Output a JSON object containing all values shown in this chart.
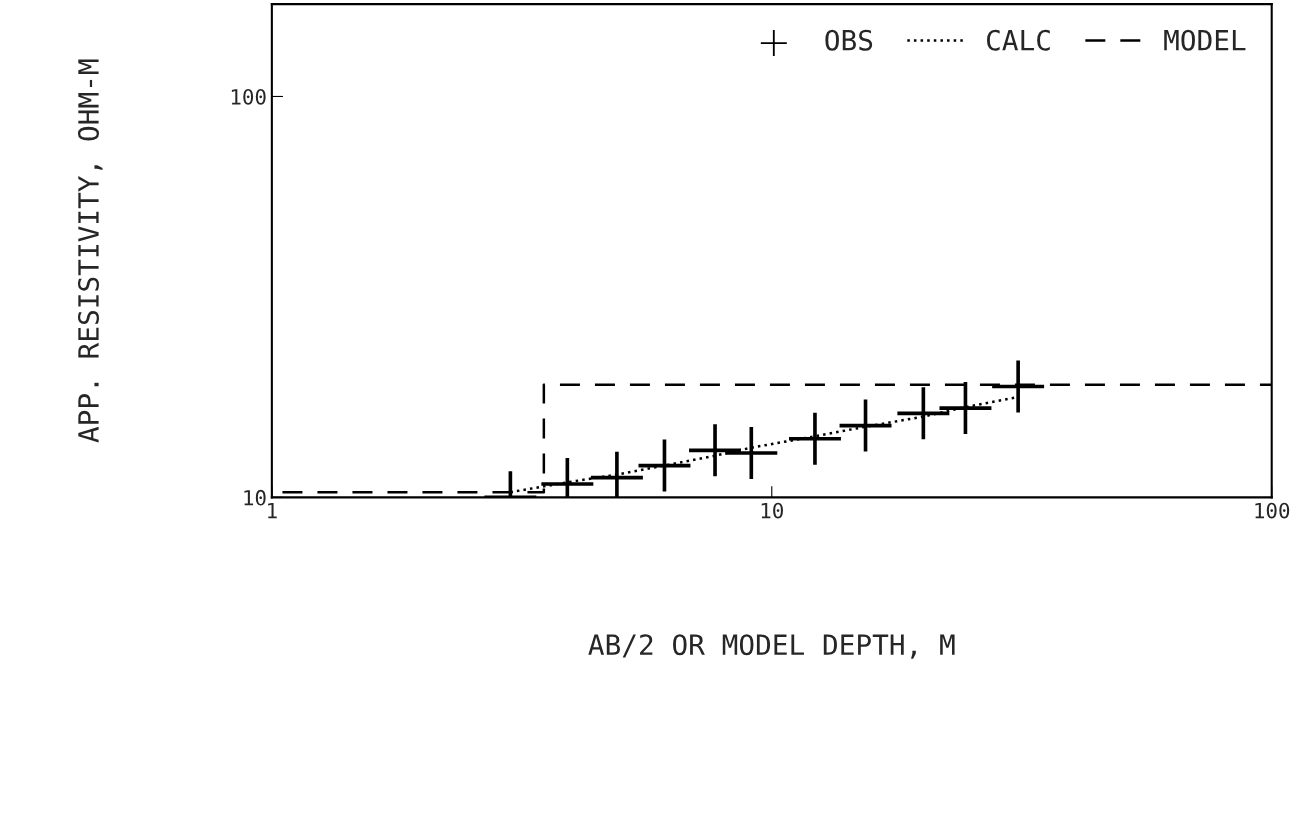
{
  "chart_data": {
    "type": "scatter",
    "xlabel": "AB/2 OR MODEL DEPTH, M",
    "ylabel": "APP. RESISTIVITY, OHM-M",
    "log": "xy",
    "xlim": [
      1,
      100
    ],
    "ylim": [
      10,
      170
    ],
    "xticks": [
      1,
      10,
      100
    ],
    "yticks": [
      10,
      100
    ],
    "grid": false,
    "legend": "top right",
    "series": [
      {
        "name": "OBS",
        "marker": "cross",
        "color": "#000000",
        "x": [
          3.0,
          3.9,
          4.9,
          6.1,
          7.7,
          9.1,
          12.2,
          15.4,
          20.1,
          24.4,
          31.1
        ],
        "values": [
          10.0,
          10.8,
          11.2,
          12.0,
          13.1,
          12.9,
          14.0,
          15.1,
          16.2,
          16.7,
          18.9
        ]
      },
      {
        "name": "CALC",
        "type": "line",
        "line_style": "dotted",
        "color": "#000000",
        "x": [
          3.0,
          3.9,
          4.9,
          6.1,
          7.7,
          9.1,
          12.2,
          15.4,
          20.1,
          24.4,
          31.1
        ],
        "values": [
          10.3,
          10.9,
          11.4,
          12.0,
          12.7,
          13.3,
          14.2,
          15.0,
          15.9,
          16.8,
          17.8
        ]
      },
      {
        "name": "MODEL",
        "type": "line",
        "line_style": "dashed",
        "color": "#000000",
        "x": [
          1.05,
          3.5,
          3.5,
          100
        ],
        "values": [
          10.3,
          10.3,
          19.1,
          19.1
        ]
      }
    ]
  }
}
